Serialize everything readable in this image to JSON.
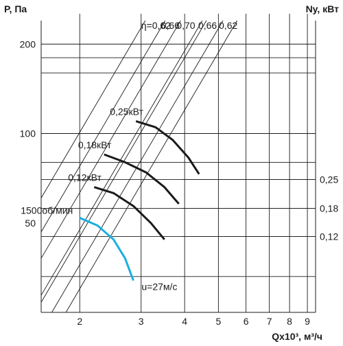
{
  "chart_data": {
    "type": "line",
    "title": "",
    "ylabel": "P, Па",
    "y2label": "Ny, кВт",
    "xlabel": "Qx10³, м³/ч",
    "x_scale": "log",
    "y_scale": "log",
    "xlim": [
      1.55,
      9.5
    ],
    "ylim": [
      25,
      240
    ],
    "x_ticks": [
      {
        "value": 2,
        "label": "2"
      },
      {
        "value": 3,
        "label": "3"
      },
      {
        "value": 4,
        "label": "4"
      },
      {
        "value": 5,
        "label": "5"
      },
      {
        "value": 6,
        "label": "6"
      },
      {
        "value": 7,
        "label": "7"
      },
      {
        "value": 8,
        "label": "8"
      },
      {
        "value": 9,
        "label": "9"
      }
    ],
    "y_ticks": [
      {
        "value": 200,
        "label": "200"
      },
      {
        "value": 100,
        "label": "100"
      },
      {
        "value": 50,
        "label": "50"
      }
    ],
    "right_ticks": [
      {
        "at_p": 70,
        "label": "0,25"
      },
      {
        "at_p": 56,
        "label": "0,18"
      },
      {
        "at_p": 45,
        "label": "0,12"
      }
    ],
    "power_levels": [
      {
        "label": "0,25кВт",
        "points": [
          [
            2.9,
            110
          ],
          [
            3.3,
            105
          ],
          [
            3.7,
            95
          ],
          [
            4.1,
            83
          ],
          [
            4.4,
            73
          ]
        ]
      },
      {
        "label": "0,18кВт",
        "points": [
          [
            2.35,
            85
          ],
          [
            2.7,
            80
          ],
          [
            3.1,
            74
          ],
          [
            3.5,
            66
          ],
          [
            3.85,
            58
          ]
        ]
      },
      {
        "label": "0,12кВт",
        "points": [
          [
            2.2,
            66
          ],
          [
            2.5,
            63
          ],
          [
            2.85,
            57
          ],
          [
            3.2,
            50
          ],
          [
            3.5,
            44
          ]
        ]
      }
    ],
    "speed_curve": {
      "label": "1500об/мин",
      "color": "#1aaee0",
      "points": [
        [
          2.0,
          52
        ],
        [
          2.25,
          49
        ],
        [
          2.5,
          44
        ],
        [
          2.7,
          38
        ],
        [
          2.85,
          32
        ]
      ]
    },
    "velocity_label": "u=27м/с",
    "efficiency_lines": [
      {
        "label": "η=0,62",
        "slope": 2,
        "through": [
          2.85,
          205
        ]
      },
      {
        "label": "0,66",
        "slope": 2,
        "through": [
          3.25,
          205
        ]
      },
      {
        "label": "0,70",
        "slope": 2,
        "through": [
          3.6,
          205
        ]
      },
      {
        "label": "0,66",
        "slope": 2,
        "through": [
          4.0,
          190
        ]
      },
      {
        "label": "0,62",
        "slope": 2,
        "through": [
          4.4,
          175
        ]
      }
    ],
    "extra_efficiency_lines": [
      {
        "slope": 2,
        "through": [
          2.0,
          45
        ]
      },
      {
        "slope": 2,
        "through": [
          2.0,
          30
        ]
      }
    ],
    "h_grid": [
      200,
      180,
      160,
      100,
      80,
      70,
      56,
      45,
      33
    ],
    "grid": true,
    "colors": {
      "ink": "#1a1a1a",
      "speed": "#1aaee0"
    }
  }
}
